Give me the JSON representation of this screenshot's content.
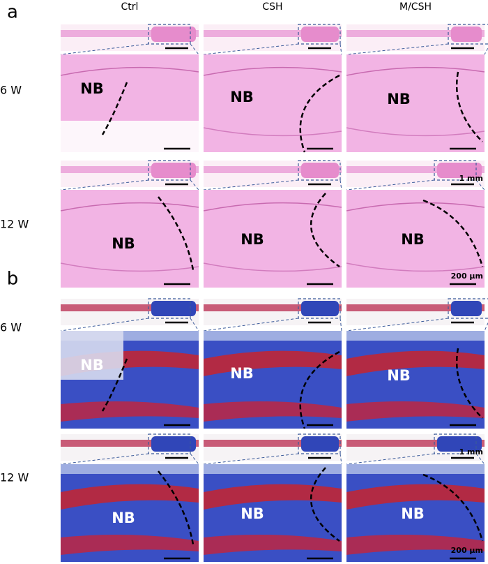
{
  "columns": [
    "Ctrl",
    "CSH",
    "M/CSH"
  ],
  "panels": [
    {
      "label": "a",
      "stain": "he",
      "rows": [
        {
          "label": "6 W",
          "cells": [
            {
              "zoom_label": "NB"
            },
            {
              "zoom_label": "NB"
            },
            {
              "zoom_label": "NB"
            }
          ]
        },
        {
          "label": "12 W",
          "cells": [
            {
              "zoom_label": "NB"
            },
            {
              "zoom_label": "NB"
            },
            {
              "zoom_label": "NB",
              "overview_scale": "1 mm",
              "zoom_scale": "200 µm"
            }
          ]
        }
      ]
    },
    {
      "label": "b",
      "stain": "masson",
      "rows": [
        {
          "label": "6 W",
          "cells": [
            {
              "zoom_label": "NB"
            },
            {
              "zoom_label": "NB"
            },
            {
              "zoom_label": "NB"
            }
          ]
        },
        {
          "label": "12 W",
          "cells": [
            {
              "zoom_label": "NB"
            },
            {
              "zoom_label": "NB"
            },
            {
              "zoom_label": "NB",
              "overview_scale": "1 mm",
              "zoom_scale": "200 µm"
            }
          ]
        }
      ]
    }
  ]
}
